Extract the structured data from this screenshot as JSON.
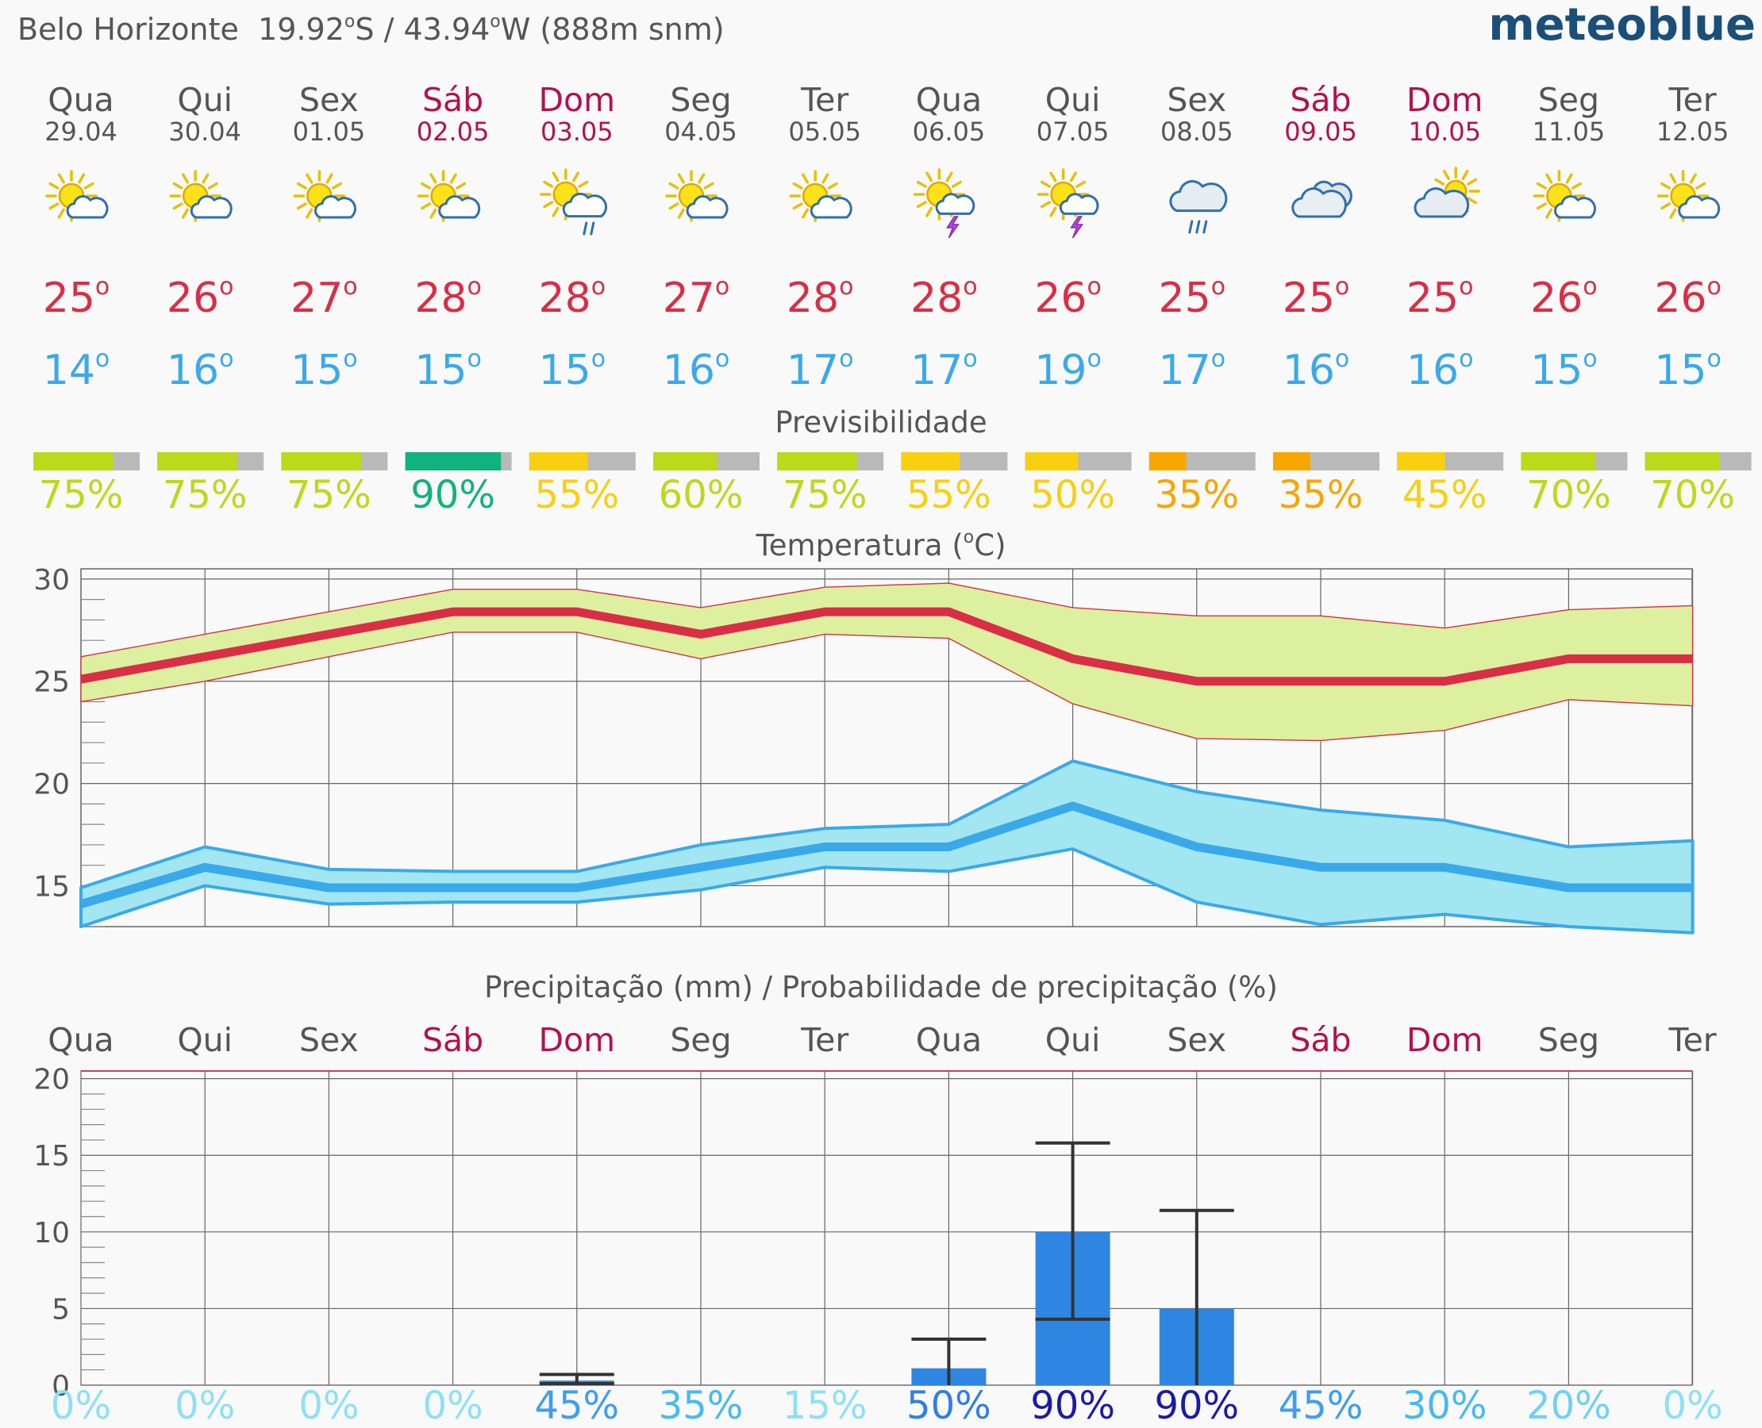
{
  "header": {
    "location": "Belo Horizonte",
    "lat": "19.92",
    "lat_hemi": "S",
    "separator": "/",
    "lon": "43.94",
    "lon_hemi": "W",
    "elevation": "(888m snm)",
    "degree_symbol": "o",
    "brand": "meteoblue"
  },
  "colors": {
    "weekday": "#555555",
    "weekend": "#b5104e",
    "tmax": "#d92e46",
    "tmin": "#3aa9ea",
    "tmax_band": "#ddf0a0",
    "tmin_band": "#a2e6f2",
    "precip_bar": "#2f86e2",
    "brand": "#1a4f7a"
  },
  "chart_data": [
    {
      "type": "table",
      "title": "",
      "days": [
        {
          "name": "Qua",
          "date": "29.04",
          "weekend": false,
          "icon": "sun-cloud-icon",
          "tmax": 25,
          "tmin": 14
        },
        {
          "name": "Qui",
          "date": "30.04",
          "weekend": false,
          "icon": "sun-cloud-icon",
          "tmax": 26,
          "tmin": 16
        },
        {
          "name": "Sex",
          "date": "01.05",
          "weekend": false,
          "icon": "sun-cloud-icon",
          "tmax": 27,
          "tmin": 15
        },
        {
          "name": "Sáb",
          "date": "02.05",
          "weekend": true,
          "icon": "sun-cloud-icon",
          "tmax": 28,
          "tmin": 15
        },
        {
          "name": "Dom",
          "date": "03.05",
          "weekend": true,
          "icon": "sun-cloud-rain-icon",
          "tmax": 28,
          "tmin": 15
        },
        {
          "name": "Seg",
          "date": "04.05",
          "weekend": false,
          "icon": "sun-cloud-icon",
          "tmax": 27,
          "tmin": 16
        },
        {
          "name": "Ter",
          "date": "05.05",
          "weekend": false,
          "icon": "sun-cloud-icon",
          "tmax": 28,
          "tmin": 17
        },
        {
          "name": "Qua",
          "date": "06.05",
          "weekend": false,
          "icon": "sun-thunder-icon",
          "tmax": 28,
          "tmin": 17
        },
        {
          "name": "Qui",
          "date": "07.05",
          "weekend": false,
          "icon": "sun-thunder-icon",
          "tmax": 26,
          "tmin": 19
        },
        {
          "name": "Sex",
          "date": "08.05",
          "weekend": false,
          "icon": "cloud-rain-icon",
          "tmax": 25,
          "tmin": 17
        },
        {
          "name": "Sáb",
          "date": "09.05",
          "weekend": true,
          "icon": "overcast-icon",
          "tmax": 25,
          "tmin": 16
        },
        {
          "name": "Dom",
          "date": "10.05",
          "weekend": true,
          "icon": "cloud-sun-icon",
          "tmax": 25,
          "tmin": 16
        },
        {
          "name": "Seg",
          "date": "11.05",
          "weekend": false,
          "icon": "sun-cloud-icon",
          "tmax": 26,
          "tmin": 15
        },
        {
          "name": "Ter",
          "date": "12.05",
          "weekend": false,
          "icon": "sun-cloud-icon",
          "tmax": 26,
          "tmin": 15
        }
      ]
    },
    {
      "type": "bar",
      "title": "Previsibilidade",
      "values": [
        75,
        75,
        75,
        90,
        55,
        60,
        75,
        55,
        50,
        35,
        35,
        45,
        70,
        70
      ],
      "labels": [
        "75%",
        "75%",
        "75%",
        "90%",
        "55%",
        "60%",
        "75%",
        "55%",
        "50%",
        "35%",
        "35%",
        "45%",
        "70%",
        "70%"
      ],
      "colors": [
        "#bcd91a",
        "#bcd91a",
        "#bcd91a",
        "#11b27d",
        "#f8d00f",
        "#bcd91a",
        "#bcd91a",
        "#f8d00f",
        "#f8d00f",
        "#f8a600",
        "#f8a600",
        "#f8d00f",
        "#bcd91a",
        "#bcd91a"
      ],
      "ylim": [
        0,
        100
      ]
    },
    {
      "type": "area",
      "title": "Temperatura (",
      "title_unit": "C)",
      "ylim": [
        13,
        30.5
      ],
      "yticks": [
        15,
        20,
        25,
        30
      ],
      "grid": true,
      "series": [
        {
          "values": [
            25.1,
            26.2,
            27.3,
            28.4,
            28.4,
            27.3,
            28.4,
            28.4,
            26.1,
            25.0,
            25.0,
            25.0,
            26.1,
            26.1
          ],
          "upper": [
            26.2,
            27.3,
            28.4,
            29.5,
            29.5,
            28.6,
            29.6,
            29.8,
            28.6,
            28.2,
            28.2,
            27.6,
            28.5,
            28.7
          ],
          "lower": [
            24.0,
            25.0,
            26.2,
            27.4,
            27.4,
            26.1,
            27.3,
            27.1,
            23.9,
            22.2,
            22.1,
            22.6,
            24.1,
            23.8
          ]
        },
        {
          "values": [
            14.1,
            15.9,
            14.9,
            14.9,
            14.9,
            15.9,
            16.9,
            16.9,
            18.9,
            16.9,
            15.9,
            15.9,
            14.9,
            14.9
          ],
          "upper": [
            14.9,
            16.9,
            15.8,
            15.7,
            15.7,
            17.0,
            17.8,
            18.0,
            21.1,
            19.6,
            18.7,
            18.2,
            16.9,
            17.2
          ],
          "lower": [
            13.0,
            15.0,
            14.1,
            14.2,
            14.2,
            14.8,
            15.9,
            15.7,
            16.8,
            14.2,
            13.1,
            13.6,
            13.0,
            12.7
          ]
        }
      ]
    },
    {
      "type": "bar",
      "title": "Precipitação (mm) / Probabilidade de precipitação (%)",
      "ylim": [
        0,
        20.5
      ],
      "yticks": [
        0,
        5,
        10,
        15,
        20
      ],
      "grid": true,
      "values": [
        0,
        0,
        0,
        0,
        0.3,
        0,
        0,
        1.1,
        10.0,
        5.0,
        0,
        0,
        0,
        0
      ],
      "range_low": [
        null,
        null,
        null,
        null,
        0.1,
        null,
        null,
        0,
        4.3,
        0,
        null,
        null,
        null,
        null
      ],
      "range_high": [
        null,
        null,
        null,
        null,
        0.7,
        null,
        null,
        3.0,
        15.8,
        11.4,
        null,
        null,
        null,
        null
      ],
      "probability": [
        0,
        0,
        0,
        0,
        45,
        35,
        15,
        50,
        90,
        90,
        45,
        30,
        20,
        0
      ],
      "probability_labels": [
        "0%",
        "0%",
        "0%",
        "0%",
        "45%",
        "35%",
        "15%",
        "50%",
        "90%",
        "90%",
        "45%",
        "30%",
        "20%",
        "0%"
      ],
      "probability_colors": [
        "#8ee0f4",
        "#8ee0f4",
        "#8ee0f4",
        "#8ee0f4",
        "#3d9ef0",
        "#48b9f0",
        "#8ee0f4",
        "#2f7ee6",
        "#1a1aaa",
        "#1a1aaa",
        "#3d9ef0",
        "#48b9f0",
        "#6fd0f4",
        "#8ee0f4"
      ]
    }
  ]
}
